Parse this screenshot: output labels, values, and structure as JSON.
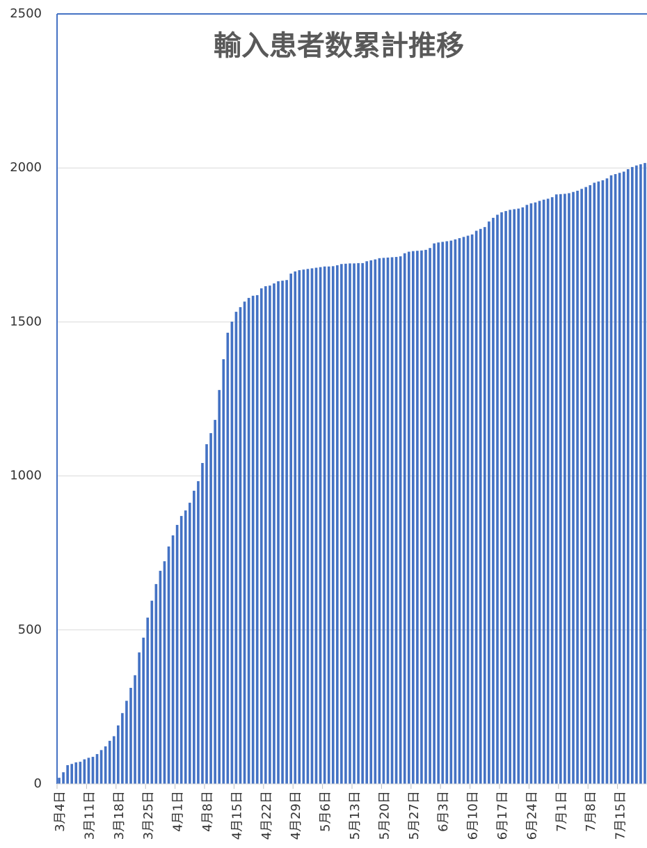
{
  "chart_data": {
    "type": "bar",
    "title": "輸入患者数累計推移",
    "categories": [
      "3月4日",
      null,
      null,
      null,
      null,
      null,
      null,
      "3月11日",
      null,
      null,
      null,
      null,
      null,
      null,
      "3月18日",
      null,
      null,
      null,
      null,
      null,
      null,
      "3月25日",
      null,
      null,
      null,
      null,
      null,
      null,
      "4月1日",
      null,
      null,
      null,
      null,
      null,
      null,
      "4月8日",
      null,
      null,
      null,
      null,
      null,
      null,
      "4月15日",
      null,
      null,
      null,
      null,
      null,
      null,
      "4月22日",
      null,
      null,
      null,
      null,
      null,
      null,
      "4月29日",
      null,
      null,
      null,
      null,
      null,
      null,
      "5月6日",
      null,
      null,
      null,
      null,
      null,
      null,
      "5月13日",
      null,
      null,
      null,
      null,
      null,
      null,
      "5月20日",
      null,
      null,
      null,
      null,
      null,
      null,
      "5月27日",
      null,
      null,
      null,
      null,
      null,
      null,
      "6月3日",
      null,
      null,
      null,
      null,
      null,
      null,
      "6月10日",
      null,
      null,
      null,
      null,
      null,
      null,
      "6月17日",
      null,
      null,
      null,
      null,
      null,
      null,
      "6月24日",
      null,
      null,
      null,
      null,
      null,
      null,
      "7月1日",
      null,
      null,
      null,
      null,
      null,
      null,
      "7月8日",
      null,
      null,
      null,
      null,
      null,
      null,
      "7月15日",
      null,
      null,
      null,
      null,
      null,
      null
    ],
    "values": [
      20,
      38,
      61,
      65,
      70,
      72,
      80,
      85,
      88,
      97,
      110,
      122,
      140,
      155,
      190,
      230,
      270,
      312,
      353,
      427,
      475,
      540,
      595,
      649,
      692,
      723,
      771,
      807,
      841,
      870,
      888,
      913,
      952,
      983,
      1042,
      1103,
      1139,
      1182,
      1279,
      1379,
      1465,
      1501,
      1533,
      1548,
      1566,
      1578,
      1585,
      1587,
      1609,
      1616,
      1618,
      1625,
      1632,
      1634,
      1636,
      1657,
      1664,
      1668,
      1670,
      1672,
      1674,
      1676,
      1678,
      1680,
      1680,
      1681,
      1684,
      1688,
      1689,
      1690,
      1690,
      1691,
      1691,
      1697,
      1700,
      1703,
      1707,
      1708,
      1709,
      1710,
      1711,
      1713,
      1723,
      1728,
      1730,
      1731,
      1732,
      1734,
      1740,
      1755,
      1758,
      1760,
      1762,
      1764,
      1768,
      1772,
      1776,
      1780,
      1784,
      1796,
      1802,
      1808,
      1826,
      1838,
      1848,
      1856,
      1860,
      1864,
      1866,
      1868,
      1872,
      1880,
      1885,
      1888,
      1893,
      1897,
      1900,
      1905,
      1914,
      1915,
      1916,
      1918,
      1922,
      1926,
      1932,
      1938,
      1944,
      1952,
      1956,
      1960,
      1966,
      1976,
      1980,
      1984,
      1988,
      1996,
      2003,
      2008,
      2012,
      2016
    ],
    "color": "#4472c4",
    "ylim": [
      0,
      2500
    ],
    "yticks": [
      0,
      500,
      1000,
      1500,
      2000,
      2500
    ],
    "grid": true
  }
}
